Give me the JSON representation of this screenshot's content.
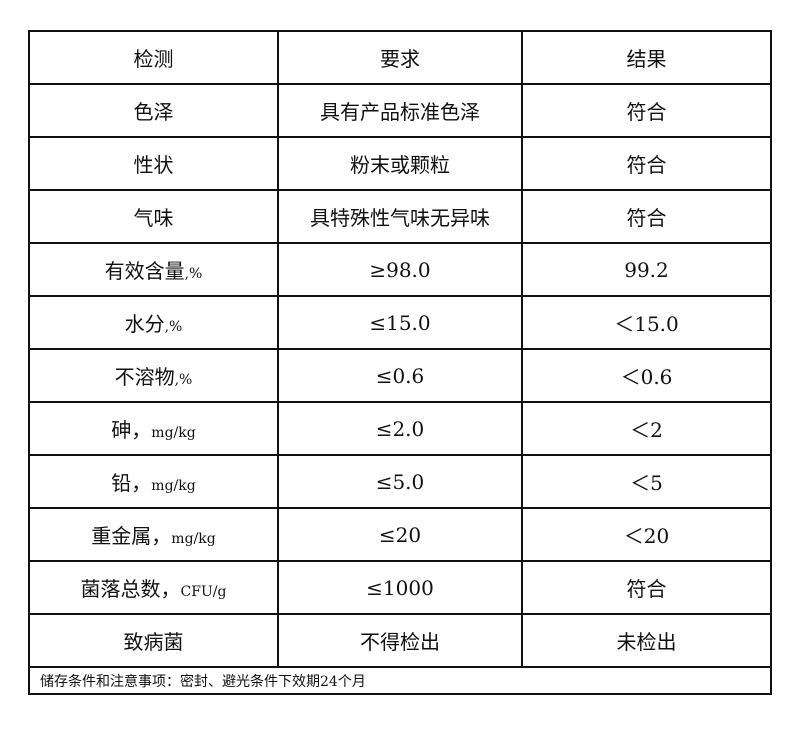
{
  "table": {
    "headers": [
      "检测",
      "要求",
      "结果"
    ],
    "rows": [
      {
        "item": "色泽",
        "unit": "",
        "requirement": "具有产品标准色泽",
        "result": "符合"
      },
      {
        "item": "性状",
        "unit": "",
        "requirement": "粉末或颗粒",
        "result": "符合"
      },
      {
        "item": "气味",
        "unit": "",
        "requirement": "具特殊性气味无异味",
        "result": "符合"
      },
      {
        "item": "有效含量",
        "unit": ",%",
        "requirement": "≥98.0",
        "result": "99.2"
      },
      {
        "item": "水分",
        "unit": ",%",
        "requirement": "≤15.0",
        "result": "＜15.0"
      },
      {
        "item": "不溶物",
        "unit": ",%",
        "requirement": "≤0.6",
        "result": "＜0.6"
      },
      {
        "item": "砷，",
        "unit": "mg/kg",
        "requirement": "≤2.0",
        "result": "＜2"
      },
      {
        "item": "铅，",
        "unit": "mg/kg",
        "requirement": "≤5.0",
        "result": "＜5"
      },
      {
        "item": "重金属，",
        "unit": "mg/kg",
        "requirement": "≤20",
        "result": "＜20"
      },
      {
        "item": "菌落总数，",
        "unit": "CFU/g",
        "requirement": "≤1000",
        "result": "符合"
      },
      {
        "item": "致病菌",
        "unit": "",
        "requirement": "不得检出",
        "result": "未检出"
      }
    ],
    "footer": "储存条件和注意事项：密封、避光条件下效期24个月"
  }
}
